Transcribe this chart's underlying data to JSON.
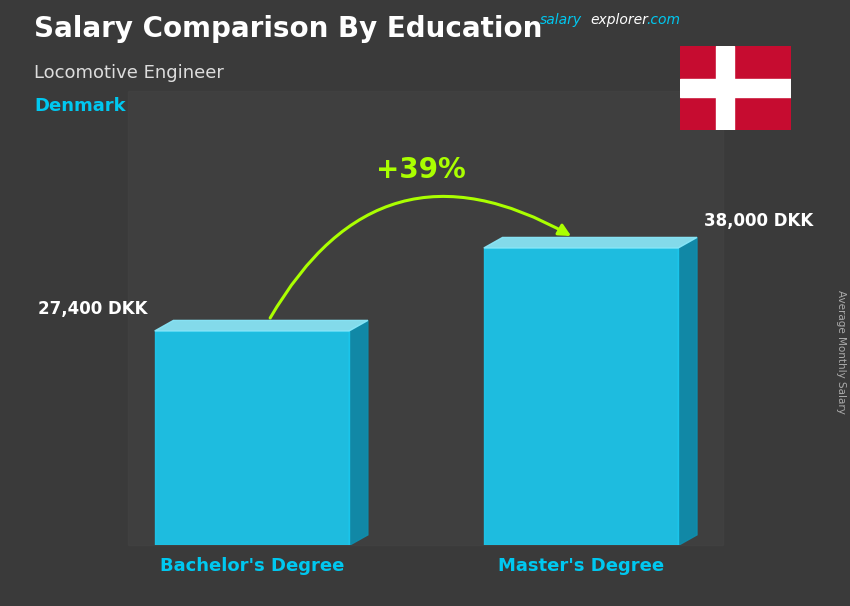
{
  "title": "Salary Comparison By Education",
  "subtitle": "Locomotive Engineer",
  "country": "Denmark",
  "categories": [
    "Bachelor's Degree",
    "Master's Degree"
  ],
  "values": [
    27400,
    38000
  ],
  "value_labels": [
    "27,400 DKK",
    "38,000 DKK"
  ],
  "pct_change": "+39%",
  "bar_front_color": "#1cc8ee",
  "bar_top_color": "#8ae8fa",
  "bar_side_color": "#0d8fb0",
  "bg_color": "#444444",
  "title_color": "#ffffff",
  "subtitle_color": "#dddddd",
  "country_color": "#00c8f0",
  "label_color": "#ffffff",
  "xticklabel_color": "#00c8f0",
  "pct_color": "#aaff00",
  "brand_salary_color": "#00c8f0",
  "brand_explorer_color": "#ffffff",
  "brand_com_color": "#00c8f0",
  "ylabel": "Average Monthly Salary",
  "ylim": [
    0,
    48000
  ],
  "fig_width": 8.5,
  "fig_height": 6.06,
  "flag_red": "#c60c30",
  "flag_white": "#ffffff"
}
